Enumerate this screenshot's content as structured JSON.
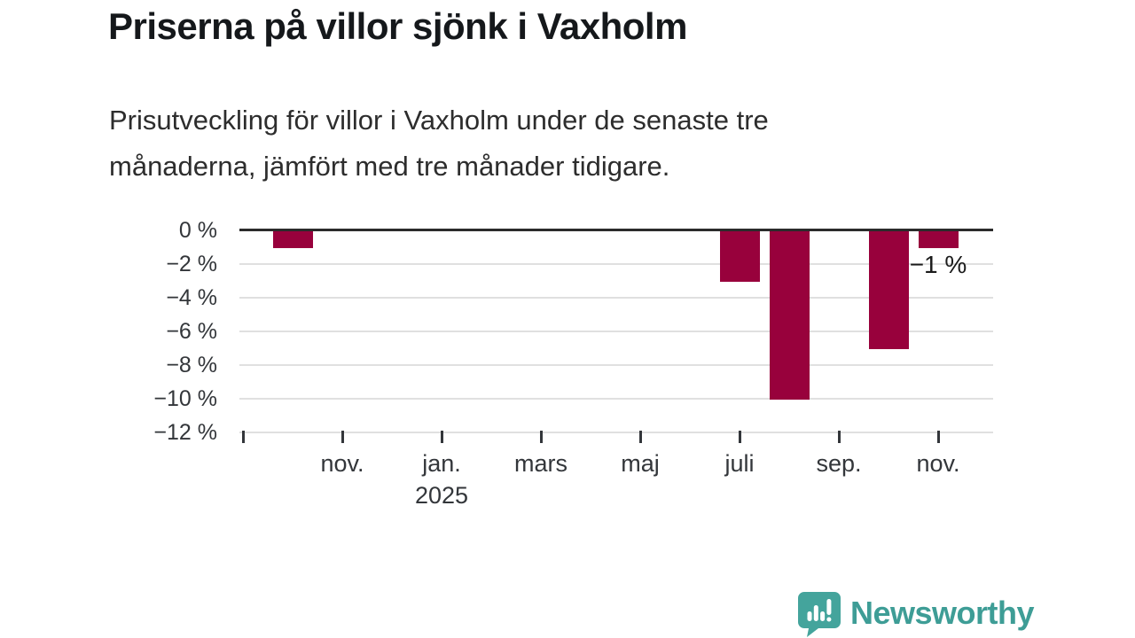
{
  "title": "Priserna på villor sjönk i Vaxholm",
  "subtitle": {
    "line1": "Prisutveckling för villor i Vaxholm under de senaste tre",
    "line2": "månaderna, jämfört med tre månader tidigare."
  },
  "chart_data": {
    "type": "bar",
    "title": "Priserna på villor sjönk i Vaxholm",
    "subtitle": "Prisutveckling för villor i Vaxholm under de senaste tre månaderna, jämfört med tre månader tidigare.",
    "unit": "%",
    "ylim": [
      -12,
      0
    ],
    "grid": "horizontal",
    "y_ticks": [
      {
        "label": "0 %",
        "value": 0
      },
      {
        "label": "−2 %",
        "value": -2
      },
      {
        "label": "−4 %",
        "value": -4
      },
      {
        "label": "−6 %",
        "value": -6
      },
      {
        "label": "−8 %",
        "value": -8
      },
      {
        "label": "−10 %",
        "value": -10
      },
      {
        "label": "−12 %",
        "value": -12
      }
    ],
    "x_axis_start_month": "sep. 2024",
    "x_ticks": [
      {
        "slot": 0,
        "label": ""
      },
      {
        "slot": 2,
        "label": "nov."
      },
      {
        "slot": 4,
        "label": "jan.",
        "year": "2025"
      },
      {
        "slot": 6,
        "label": "mars"
      },
      {
        "slot": 8,
        "label": "maj"
      },
      {
        "slot": 10,
        "label": "juli"
      },
      {
        "slot": 12,
        "label": "sep."
      },
      {
        "slot": 14,
        "label": "nov."
      }
    ],
    "bars": [
      {
        "month": "okt. 2024",
        "slot": 1,
        "value": -1
      },
      {
        "month": "juli 2025",
        "slot": 10,
        "value": -3
      },
      {
        "month": "aug. 2025",
        "slot": 11,
        "value": -10
      },
      {
        "month": "okt. 2025",
        "slot": 13,
        "value": -7
      },
      {
        "month": "nov. 2025",
        "slot": 14,
        "value": -1,
        "annotation": "−1 %"
      }
    ]
  },
  "colors": {
    "bar": "#98013c",
    "zero_axis": "#2b2b2b",
    "gridline": "#e0e0e0",
    "axis_text": "#33363a",
    "title_text": "#15181b",
    "logo_teal": "#3e9d96",
    "logo_icon_teal": "#44a49c"
  },
  "logo": {
    "brand": "Newsworthy",
    "icon": "speech-bubble-bar-chart-exclamation"
  }
}
